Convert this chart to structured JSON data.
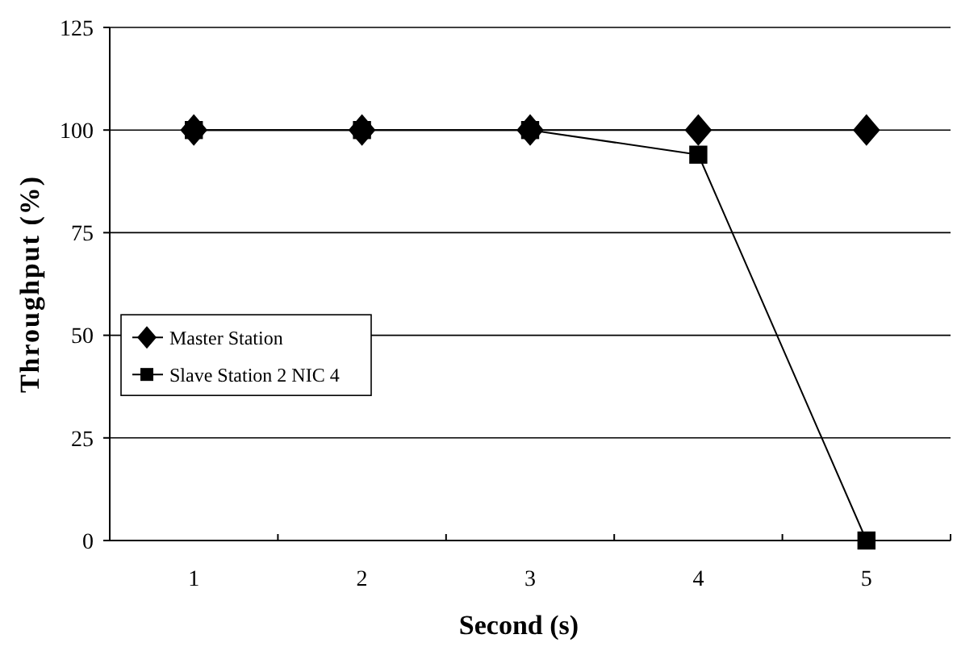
{
  "chart_data": {
    "type": "line",
    "xlabel": "Second (s)",
    "ylabel": "Throughput (%)",
    "categories": [
      "1",
      "2",
      "3",
      "4",
      "5"
    ],
    "series": [
      {
        "name": "Master Station",
        "color": "#000000",
        "marker": "diamond",
        "values": [
          100,
          100,
          100,
          100,
          100
        ]
      },
      {
        "name": "Slave Station 2 NIC 4",
        "color": "#000000",
        "marker": "square",
        "values": [
          100,
          100,
          100,
          94,
          0
        ]
      }
    ],
    "ylim": [
      0,
      125
    ],
    "yticks": [
      0,
      25,
      50,
      75,
      100,
      125
    ],
    "grid": "y",
    "legend": "left"
  }
}
